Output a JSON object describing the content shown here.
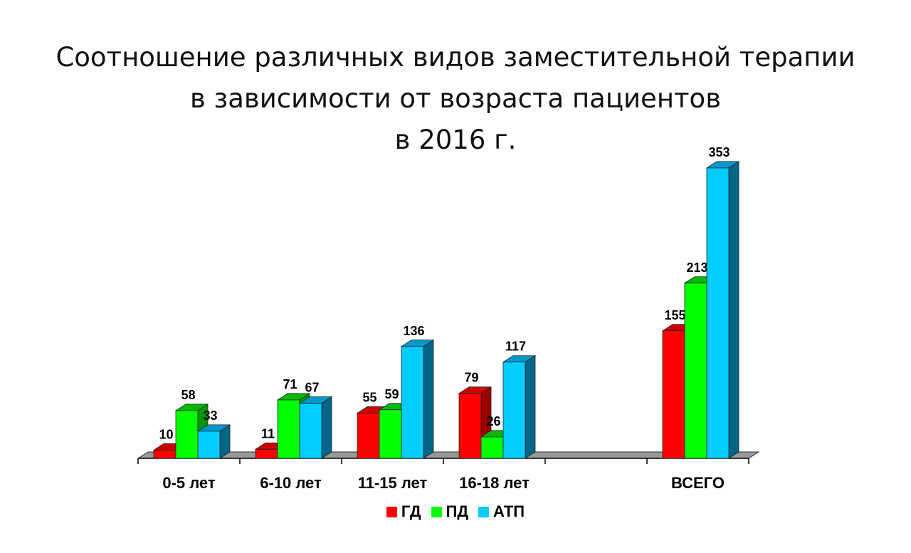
{
  "chart_data": {
    "type": "bar",
    "title_lines": [
      "Соотношение различных видов заместительной терапии",
      "в зависимости от возраста пациентов",
      "в 2016 г."
    ],
    "categories": [
      "0-5 лет",
      "6-10 лет",
      "11-15 лет",
      "16-18 лет",
      "",
      "ВСЕГО"
    ],
    "series": [
      {
        "name": "ГД",
        "color": "#ff0000",
        "values": [
          10,
          11,
          55,
          79,
          null,
          155
        ]
      },
      {
        "name": "ПД",
        "color": "#00ff00",
        "values": [
          58,
          71,
          59,
          26,
          null,
          213
        ]
      },
      {
        "name": "АТП",
        "color": "#00ccff",
        "values": [
          33,
          67,
          136,
          117,
          null,
          353
        ]
      }
    ],
    "ylim": [
      0,
      353
    ],
    "grid": false,
    "legend_position": "bottom",
    "style": "3d-columns"
  }
}
